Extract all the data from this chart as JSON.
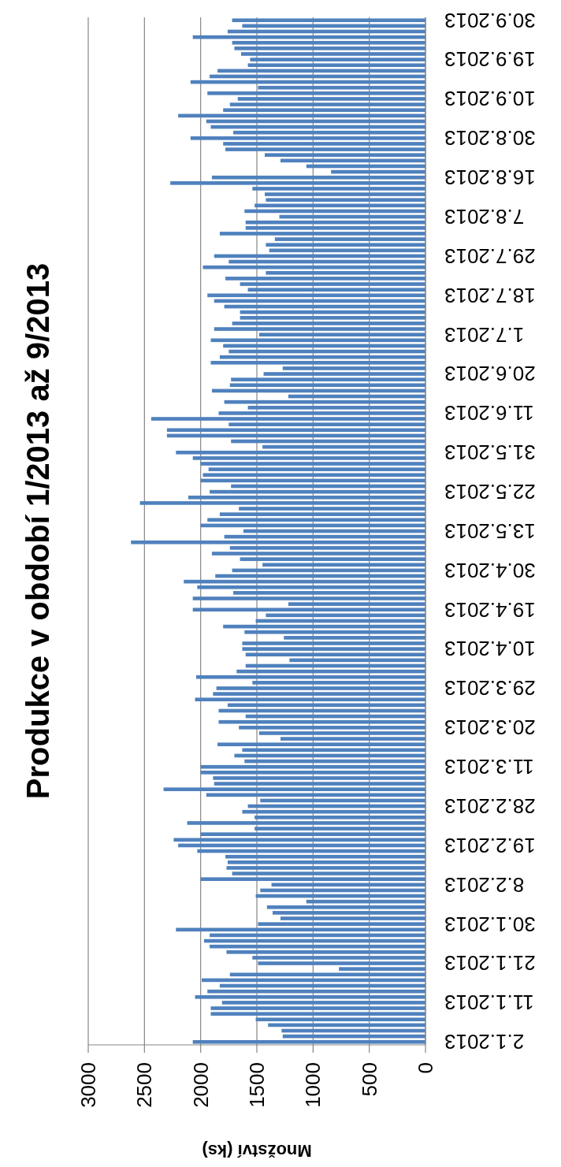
{
  "chart_data": {
    "type": "bar",
    "orientation": "horizontal",
    "title": "Produkce v období 1/2013 až 9/2013",
    "xlabel": "Množství (ks)",
    "categories": [
      "30.9.2013",
      null,
      null,
      null,
      null,
      null,
      null,
      "19.9.2013",
      null,
      null,
      null,
      null,
      null,
      null,
      "10.9.2013",
      null,
      null,
      null,
      null,
      null,
      null,
      "30.8.2013",
      null,
      null,
      null,
      null,
      null,
      null,
      "16.8.2013",
      null,
      null,
      null,
      null,
      null,
      null,
      "7.8.2013",
      null,
      null,
      null,
      null,
      null,
      null,
      "29.7.2013",
      null,
      null,
      null,
      null,
      null,
      null,
      "18.7.2013",
      null,
      null,
      null,
      null,
      null,
      null,
      "1.7.2013",
      null,
      null,
      null,
      null,
      null,
      null,
      "20.6.2013",
      null,
      null,
      null,
      null,
      null,
      null,
      "11.6.2013",
      null,
      null,
      null,
      null,
      null,
      null,
      "31.5.2013",
      null,
      null,
      null,
      null,
      null,
      null,
      "22.5.2013",
      null,
      null,
      null,
      null,
      null,
      null,
      "13.5.2013",
      null,
      null,
      null,
      null,
      null,
      null,
      "30.4.2013",
      null,
      null,
      null,
      null,
      null,
      null,
      "19.4.2013",
      null,
      null,
      null,
      null,
      null,
      null,
      "10.4.2013",
      null,
      null,
      null,
      null,
      null,
      null,
      "29.3.2013",
      null,
      null,
      null,
      null,
      null,
      null,
      "20.3.2013",
      null,
      null,
      null,
      null,
      null,
      null,
      "11.3.2013",
      null,
      null,
      null,
      null,
      null,
      null,
      "28.2.2013",
      null,
      null,
      null,
      null,
      null,
      null,
      "19.2.2013",
      null,
      null,
      null,
      null,
      null,
      null,
      "8.2.2013",
      null,
      null,
      null,
      null,
      null,
      null,
      "30.1.2013",
      null,
      null,
      null,
      null,
      null,
      null,
      "21.1.2013",
      null,
      null,
      null,
      null,
      null,
      null,
      "11.1.2013",
      null,
      null,
      null,
      null,
      null,
      null,
      "2.1.2013"
    ],
    "values": [
      1720,
      1630,
      1760,
      2070,
      1720,
      1700,
      1640,
      1560,
      1580,
      1850,
      1920,
      2090,
      1490,
      1940,
      1670,
      1740,
      1800,
      2200,
      1950,
      1910,
      1710,
      2090,
      1800,
      1780,
      1430,
      1290,
      1060,
      840,
      1900,
      2270,
      1540,
      1430,
      1420,
      1520,
      1610,
      1300,
      1600,
      1600,
      1830,
      1340,
      1420,
      1390,
      1880,
      1750,
      1980,
      1420,
      1780,
      1650,
      1580,
      1940,
      1880,
      1790,
      1650,
      1650,
      1720,
      1880,
      1480,
      1910,
      1800,
      1750,
      1830,
      1910,
      1270,
      1440,
      1730,
      1740,
      1900,
      1220,
      1790,
      1580,
      1840,
      2440,
      1750,
      2300,
      2300,
      1730,
      1450,
      2220,
      2070,
      2000,
      1930,
      1980,
      2000,
      1730,
      1920,
      2110,
      2540,
      1660,
      1830,
      1940,
      2000,
      1620,
      1790,
      2620,
      1740,
      1900,
      1650,
      1450,
      1720,
      1870,
      2150,
      2030,
      1710,
      2070,
      1220,
      2070,
      1420,
      1510,
      1800,
      1610,
      1260,
      1630,
      1630,
      1600,
      1210,
      1600,
      1680,
      2040,
      1540,
      1860,
      1890,
      2050,
      1760,
      1840,
      1600,
      1840,
      1660,
      1480,
      1290,
      1850,
      1630,
      1700,
      1610,
      2000,
      2000,
      1890,
      1880,
      2330,
      1950,
      1470,
      1580,
      1630,
      1520,
      2120,
      1520,
      2000,
      2240,
      2200,
      2030,
      1780,
      1760,
      1770,
      1720,
      2000,
      1370,
      1470,
      1510,
      1060,
      1410,
      1360,
      1290,
      1490,
      2220,
      1920,
      1970,
      1920,
      1770,
      1540,
      1490,
      770,
      1740,
      1990,
      1830,
      1940,
      2050,
      1810,
      1910,
      1910,
      1510,
      1400,
      1280,
      1270,
      2070
    ],
    "color": "#4f81bd",
    "xlim": [
      3000,
      0
    ],
    "xticks": [
      3000,
      2500,
      2000,
      1500,
      1000,
      500,
      0
    ],
    "grid": "x"
  }
}
